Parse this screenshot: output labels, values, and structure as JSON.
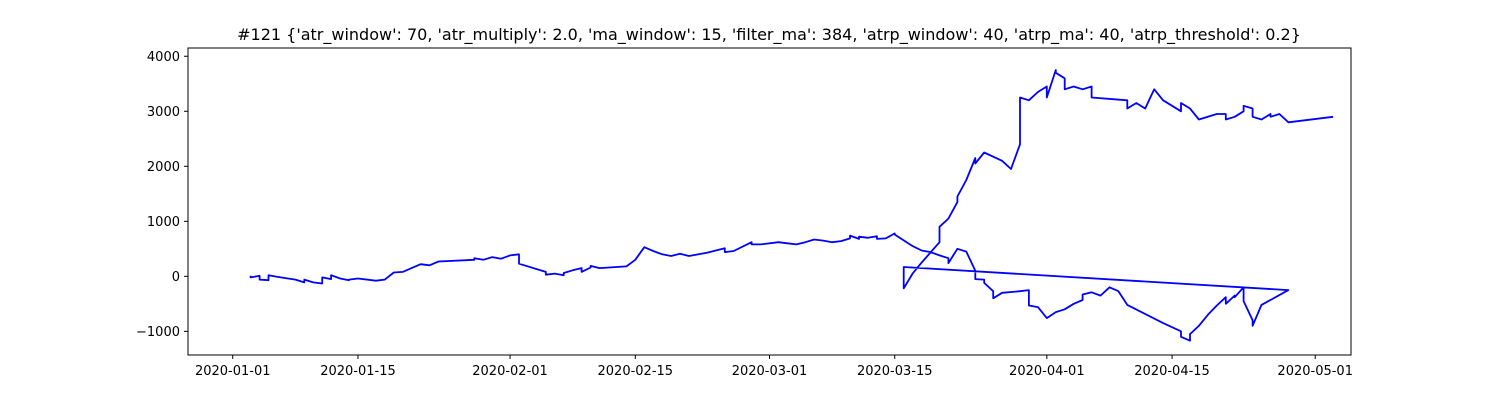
{
  "chart_data": {
    "type": "line",
    "title": "#121 {'atr_window': 70, 'atr_multiply': 2.0, 'ma_window': 15, 'filter_ma': 384, 'atrp_window': 40, 'atrp_ma': 40, 'atrp_threshold': 0.2}",
    "xlabel": "",
    "ylabel": "",
    "x_ticks": [
      "2020-01-01",
      "2020-01-15",
      "2020-02-01",
      "2020-02-15",
      "2020-03-01",
      "2020-03-15",
      "2020-04-01",
      "2020-04-15",
      "2020-05-01"
    ],
    "y_ticks": [
      -1000,
      0,
      1000,
      2000,
      3000,
      4000
    ],
    "xlim": [
      "2019-12-27",
      "2020-05-05"
    ],
    "ylim": [
      -1430,
      4150
    ],
    "grid": false,
    "line_color": "#0000ff",
    "series": [
      {
        "points": [
          [
            "2020-01-03",
            10
          ],
          [
            "2020-01-03",
            -20
          ],
          [
            "2020-01-04",
            10
          ],
          [
            "2020-01-04",
            -60
          ],
          [
            "2020-01-05",
            -70
          ],
          [
            "2020-01-05",
            20
          ],
          [
            "2020-01-06",
            -10
          ],
          [
            "2020-01-08",
            -60
          ],
          [
            "2020-01-09",
            -110
          ],
          [
            "2020-01-09",
            -60
          ],
          [
            "2020-01-10",
            -110
          ],
          [
            "2020-01-11",
            -130
          ],
          [
            "2020-01-11",
            -20
          ],
          [
            "2020-01-12",
            -50
          ],
          [
            "2020-01-12",
            20
          ],
          [
            "2020-01-13",
            -40
          ],
          [
            "2020-01-14",
            -70
          ],
          [
            "2020-01-14",
            -60
          ],
          [
            "2020-01-15",
            -40
          ],
          [
            "2020-01-17",
            -80
          ],
          [
            "2020-01-18",
            -60
          ],
          [
            "2020-01-19",
            70
          ],
          [
            "2020-01-20",
            80
          ],
          [
            "2020-01-22",
            220
          ],
          [
            "2020-01-23",
            200
          ],
          [
            "2020-01-24",
            270
          ],
          [
            "2020-01-28",
            300
          ],
          [
            "2020-01-28",
            330
          ],
          [
            "2020-01-29",
            300
          ],
          [
            "2020-01-30",
            350
          ],
          [
            "2020-01-31",
            320
          ],
          [
            "2020-02-01",
            380
          ],
          [
            "2020-02-02",
            400
          ],
          [
            "2020-02-02",
            230
          ],
          [
            "2020-02-05",
            80
          ],
          [
            "2020-02-05",
            30
          ],
          [
            "2020-02-06",
            50
          ],
          [
            "2020-02-07",
            20
          ],
          [
            "2020-02-07",
            60
          ],
          [
            "2020-02-08",
            110
          ],
          [
            "2020-02-09",
            150
          ],
          [
            "2020-02-09",
            80
          ],
          [
            "2020-02-10",
            160
          ],
          [
            "2020-02-10",
            190
          ],
          [
            "2020-02-11",
            150
          ],
          [
            "2020-02-14",
            180
          ],
          [
            "2020-02-15",
            300
          ],
          [
            "2020-02-16",
            530
          ],
          [
            "2020-02-17",
            460
          ],
          [
            "2020-02-18",
            400
          ],
          [
            "2020-02-19",
            370
          ],
          [
            "2020-02-20",
            410
          ],
          [
            "2020-02-21",
            370
          ],
          [
            "2020-02-23",
            430
          ],
          [
            "2020-02-24",
            470
          ],
          [
            "2020-02-25",
            510
          ],
          [
            "2020-02-25",
            440
          ],
          [
            "2020-02-26",
            460
          ],
          [
            "2020-02-28",
            620
          ],
          [
            "2020-02-28",
            580
          ],
          [
            "2020-02-29",
            580
          ],
          [
            "2020-03-02",
            620
          ],
          [
            "2020-03-03",
            600
          ],
          [
            "2020-03-04",
            580
          ],
          [
            "2020-03-05",
            620
          ],
          [
            "2020-03-06",
            670
          ],
          [
            "2020-03-07",
            650
          ],
          [
            "2020-03-08",
            620
          ],
          [
            "2020-03-09",
            640
          ],
          [
            "2020-03-10",
            690
          ],
          [
            "2020-03-10",
            740
          ],
          [
            "2020-03-11",
            680
          ],
          [
            "2020-03-11",
            720
          ],
          [
            "2020-03-12",
            700
          ],
          [
            "2020-03-13",
            730
          ],
          [
            "2020-03-13",
            680
          ],
          [
            "2020-03-14",
            690
          ],
          [
            "2020-03-15",
            780
          ],
          [
            "2020-03-15",
            760
          ],
          [
            "2020-03-17",
            550
          ],
          [
            "2020-03-18",
            470
          ],
          [
            "2020-03-19",
            440
          ],
          [
            "2020-03-20",
            380
          ],
          [
            "2020-03-21",
            330
          ],
          [
            "2020-03-21",
            240
          ],
          [
            "2020-03-22",
            500
          ],
          [
            "2020-03-23",
            450
          ],
          [
            "2020-03-24",
            100
          ],
          [
            "2020-03-24",
            -50
          ],
          [
            "2020-03-25",
            -60
          ],
          [
            "2020-03-25",
            -120
          ],
          [
            "2020-03-26",
            -270
          ],
          [
            "2020-03-26",
            -400
          ],
          [
            "2020-03-27",
            -300
          ],
          [
            "2020-03-29",
            -270
          ],
          [
            "2020-03-30",
            -250
          ],
          [
            "2020-03-30",
            -530
          ],
          [
            "2020-03-31",
            -560
          ],
          [
            "2020-04-01",
            -760
          ],
          [
            "2020-04-02",
            -650
          ],
          [
            "2020-04-03",
            -600
          ],
          [
            "2020-04-04",
            -500
          ],
          [
            "2020-04-05",
            -430
          ],
          [
            "2020-04-05",
            -330
          ],
          [
            "2020-04-06",
            -290
          ],
          [
            "2020-04-07",
            -350
          ],
          [
            "2020-04-08",
            -200
          ],
          [
            "2020-04-09",
            -270
          ],
          [
            "2020-04-10",
            -520
          ],
          [
            "2020-04-14",
            -850
          ],
          [
            "2020-04-16",
            -1000
          ],
          [
            "2020-04-16",
            -1100
          ],
          [
            "2020-04-17",
            -1170
          ],
          [
            "2020-04-17",
            -1050
          ],
          [
            "2020-04-18",
            -900
          ],
          [
            "2020-04-19",
            -700
          ],
          [
            "2020-04-20",
            -530
          ],
          [
            "2020-04-21",
            -380
          ],
          [
            "2020-04-21",
            -500
          ],
          [
            "2020-04-22",
            -350
          ],
          [
            "2020-04-22",
            -380
          ],
          [
            "2020-04-23",
            -200
          ],
          [
            "2020-04-23",
            -450
          ],
          [
            "2020-04-24",
            -800
          ],
          [
            "2020-04-24",
            -900
          ],
          [
            "2020-04-25",
            -520
          ],
          [
            "2020-04-28",
            -250
          ],
          [
            "2020-03-16",
            170
          ],
          [
            "2020-03-16",
            -220
          ],
          [
            "2020-03-17",
            50
          ],
          [
            "2020-03-18",
            250
          ],
          [
            "2020-03-20",
            620
          ],
          [
            "2020-03-20",
            900
          ],
          [
            "2020-03-21",
            1050
          ],
          [
            "2020-03-22",
            1350
          ],
          [
            "2020-03-22",
            1450
          ],
          [
            "2020-03-23",
            1750
          ],
          [
            "2020-03-24",
            2150
          ],
          [
            "2020-03-24",
            2050
          ],
          [
            "2020-03-25",
            2250
          ],
          [
            "2020-03-27",
            2100
          ],
          [
            "2020-03-28",
            1950
          ],
          [
            "2020-03-29",
            2400
          ],
          [
            "2020-03-29",
            3250
          ],
          [
            "2020-03-30",
            3200
          ],
          [
            "2020-03-31",
            3350
          ],
          [
            "2020-04-01",
            3450
          ],
          [
            "2020-04-01",
            3250
          ],
          [
            "2020-04-02",
            3750
          ],
          [
            "2020-04-02",
            3700
          ],
          [
            "2020-04-03",
            3600
          ],
          [
            "2020-04-03",
            3400
          ],
          [
            "2020-04-04",
            3450
          ],
          [
            "2020-04-05",
            3400
          ],
          [
            "2020-04-06",
            3450
          ],
          [
            "2020-04-06",
            3250
          ],
          [
            "2020-04-10",
            3200
          ],
          [
            "2020-04-10",
            3050
          ],
          [
            "2020-04-11",
            3150
          ],
          [
            "2020-04-12",
            3050
          ],
          [
            "2020-04-13",
            3400
          ],
          [
            "2020-04-14",
            3200
          ],
          [
            "2020-04-15",
            3100
          ],
          [
            "2020-04-16",
            3000
          ],
          [
            "2020-04-16",
            3150
          ],
          [
            "2020-04-17",
            3050
          ],
          [
            "2020-04-18",
            2850
          ],
          [
            "2020-04-20",
            2950
          ],
          [
            "2020-04-21",
            2950
          ],
          [
            "2020-04-21",
            2850
          ],
          [
            "2020-04-22",
            2900
          ],
          [
            "2020-04-23",
            3000
          ],
          [
            "2020-04-23",
            3100
          ],
          [
            "2020-04-24",
            3050
          ],
          [
            "2020-04-24",
            2900
          ],
          [
            "2020-04-25",
            2850
          ],
          [
            "2020-04-26",
            2950
          ],
          [
            "2020-04-26",
            2900
          ],
          [
            "2020-04-27",
            2950
          ],
          [
            "2020-04-28",
            2800
          ],
          [
            "2020-05-03",
            2900
          ]
        ]
      }
    ]
  }
}
